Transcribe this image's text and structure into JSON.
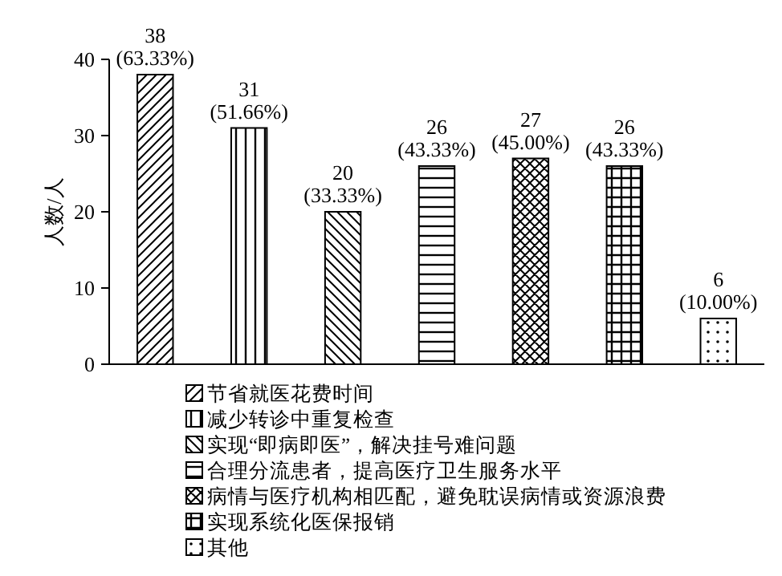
{
  "chart_data": {
    "type": "bar",
    "ylabel": "人数/人",
    "categories": [
      null,
      null,
      null,
      null,
      null,
      null,
      null
    ],
    "ylim": [
      0,
      40
    ],
    "yticks": [
      0,
      10,
      20,
      30,
      40
    ],
    "stacked": true,
    "legend": "bottom",
    "grid": false,
    "series": [
      {
        "name": "节省就医花费时间",
        "color": "#000000",
        "values": [
          38,
          null,
          null,
          null,
          null,
          null,
          null
        ],
        "value_labels": [
          "38\n(63.33%)",
          null,
          null,
          null,
          null,
          null,
          null
        ]
      },
      {
        "name": "减少转诊中重复检查",
        "color": "#000000",
        "values": [
          null,
          31,
          null,
          null,
          null,
          null,
          null
        ],
        "value_labels": [
          null,
          "31\n(51.66%)",
          null,
          null,
          null,
          null,
          null
        ]
      },
      {
        "name": "实现“即病即医”，解决挂号难问题",
        "color": "#000000",
        "values": [
          null,
          null,
          20,
          null,
          null,
          null,
          null
        ],
        "value_labels": [
          null,
          null,
          "20\n(33.33%)",
          null,
          null,
          null,
          null
        ]
      },
      {
        "name": "合理分流患者，提高医疗卫生服务水平",
        "color": "#000000",
        "values": [
          null,
          null,
          null,
          26,
          null,
          null,
          null
        ],
        "value_labels": [
          null,
          null,
          null,
          "26\n(43.33%)",
          null,
          null,
          null
        ]
      },
      {
        "name": "病情与医疗机构相匹配，避免耽误病情或资源浪费",
        "color": "#000000",
        "values": [
          null,
          null,
          null,
          null,
          27,
          null,
          null
        ],
        "value_labels": [
          null,
          null,
          null,
          null,
          "27\n(45.00%)",
          null,
          null
        ]
      },
      {
        "name": "实现系统化医保报销",
        "color": "#000000",
        "values": [
          null,
          null,
          null,
          null,
          null,
          26,
          null
        ],
        "value_labels": [
          null,
          null,
          null,
          null,
          null,
          "26\n(43.33%)",
          null
        ]
      },
      {
        "name": "其他",
        "color": "#000000",
        "values": [
          null,
          null,
          null,
          null,
          null,
          null,
          6
        ],
        "value_labels": [
          null,
          null,
          null,
          null,
          null,
          null,
          "6\n(10.00%)"
        ]
      }
    ]
  }
}
